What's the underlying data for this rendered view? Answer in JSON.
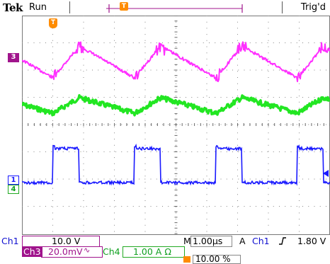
{
  "status_bar": {
    "brand": "Tek",
    "acquisition_state": "Run",
    "trigger_state": "Trig'd",
    "record_view_marker": "T"
  },
  "channels": {
    "ch3_marker": "3",
    "ch1_marker": "1",
    "ch4_marker": "4",
    "trigger_marker": "T",
    "colors": {
      "ch1": "#1a1aff",
      "ch3": "#ff30ff",
      "ch4": "#22e622",
      "ch3_tag": "#a0148c",
      "trigger": "#ff8c00"
    }
  },
  "readouts": {
    "ch1_label": "Ch1",
    "ch1_scale": "10.0 V",
    "ch3_label": "Ch3",
    "ch3_scale": "20.0mV",
    "ch3_bw_icon": "∿",
    "ch4_label": "Ch4",
    "ch4_scale": "1.00 A Ω",
    "timebase_label": "M",
    "timebase_value": "1.00µs",
    "trigger_mode": "A",
    "trigger_source": "Ch1",
    "trigger_slope_icon": "rising-edge",
    "trigger_level": "1.80 V",
    "trigger_position": "10.00 %"
  }
}
